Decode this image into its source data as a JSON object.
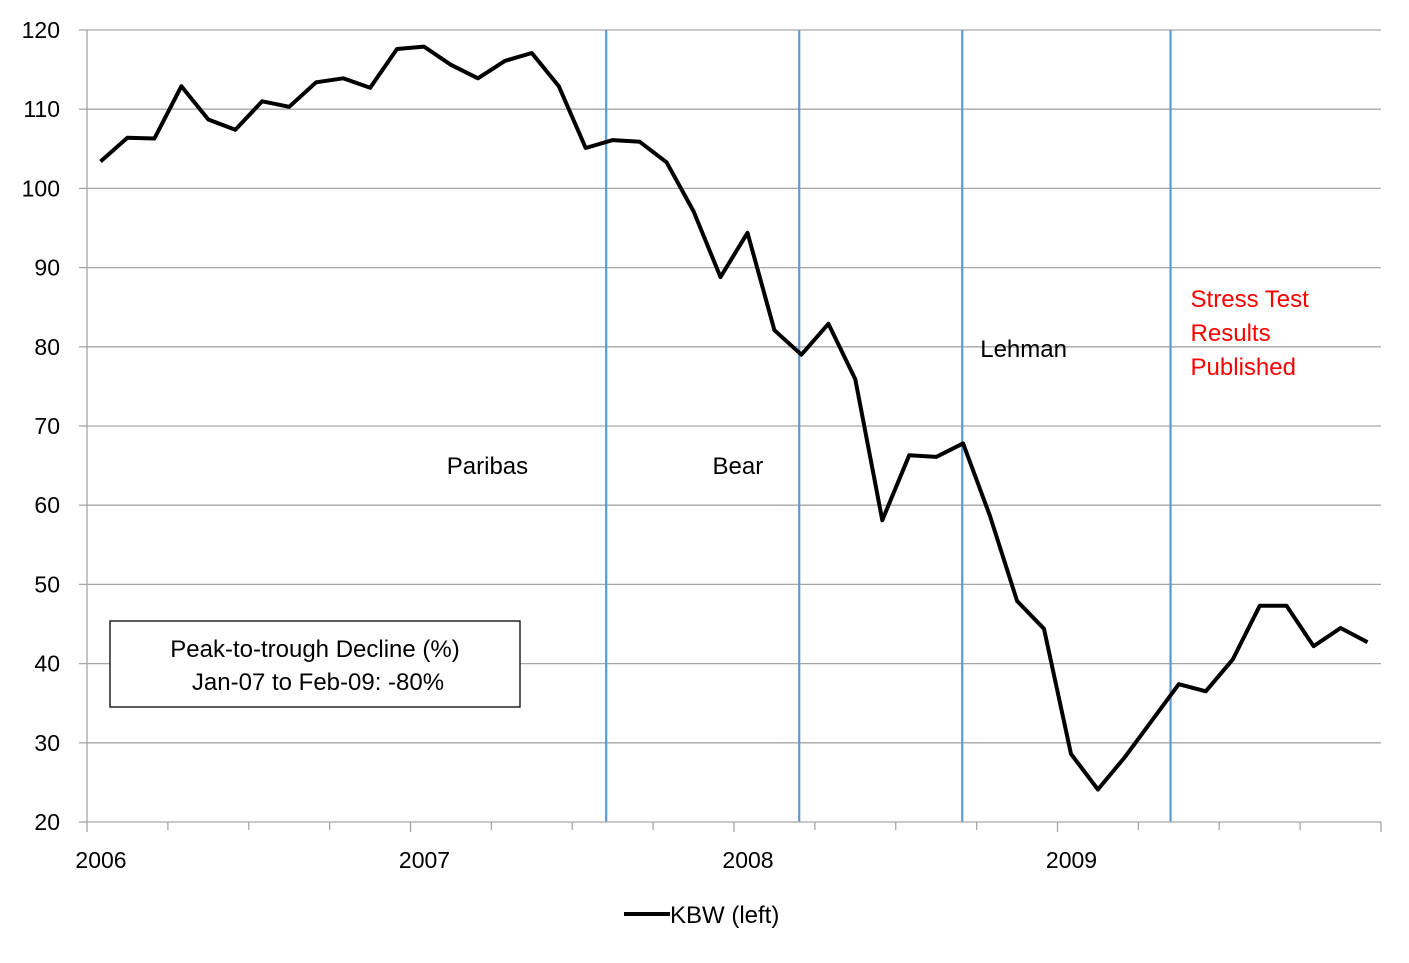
{
  "colors": {
    "series": "#000000",
    "event_line": "#5b9bd5",
    "gridline": "#a6a6a6",
    "stress_text": "#ff0000"
  },
  "chart_data": {
    "type": "line",
    "title": "",
    "xlabel": "",
    "ylabel": "",
    "ylim": [
      20,
      120
    ],
    "yticks": [
      "20",
      "30",
      "40",
      "50",
      "60",
      "70",
      "80",
      "90",
      "100",
      "110",
      "120"
    ],
    "xlim": [
      "2006-01",
      "2009-12"
    ],
    "xticks": [
      "2006",
      "2007",
      "2008",
      "2009"
    ],
    "grid": "horizontal",
    "legend": "bottom-center",
    "series": [
      {
        "name": "KBW (left)",
        "x": [
          "2006-01",
          "2006-02",
          "2006-03",
          "2006-04",
          "2006-05",
          "2006-06",
          "2006-07",
          "2006-08",
          "2006-09",
          "2006-10",
          "2006-11",
          "2006-12",
          "2007-01",
          "2007-02",
          "2007-03",
          "2007-04",
          "2007-05",
          "2007-06",
          "2007-07",
          "2007-08",
          "2007-09",
          "2007-10",
          "2007-11",
          "2007-12",
          "2008-01",
          "2008-02",
          "2008-03",
          "2008-04",
          "2008-05",
          "2008-06",
          "2008-07",
          "2008-08",
          "2008-09",
          "2008-10",
          "2008-11",
          "2008-12",
          "2009-01",
          "2009-02",
          "2009-03",
          "2009-04",
          "2009-05",
          "2009-06",
          "2009-07",
          "2009-08",
          "2009-09",
          "2009-10",
          "2009-11",
          "2009-12"
        ],
        "values": [
          103.4,
          106.4,
          106.3,
          112.9,
          108.7,
          107.4,
          111.0,
          110.3,
          113.4,
          113.9,
          112.7,
          117.6,
          117.9,
          115.6,
          113.9,
          116.1,
          117.1,
          112.9,
          105.1,
          106.1,
          105.9,
          103.3,
          97.1,
          88.8,
          94.4,
          82.1,
          79.0,
          82.9,
          75.9,
          58.1,
          66.3,
          66.1,
          67.8,
          58.6,
          47.9,
          44.4,
          28.6,
          24.1,
          28.2,
          32.8,
          37.4,
          36.5,
          40.5,
          47.3,
          47.3,
          42.2,
          44.5,
          42.7
        ]
      }
    ],
    "events": [
      {
        "label": "Paribas",
        "date": "2007-08-09"
      },
      {
        "label": "Bear",
        "date": "2008-03-14"
      },
      {
        "label": "Lehman",
        "date": "2008-09-15"
      },
      {
        "label_lines": [
          "Stress Test",
          "Results",
          "Published"
        ],
        "date": "2009-05-07"
      }
    ],
    "annotation": {
      "lines": [
        "Peak-to-trough Decline (%)",
        "Jan-07 to Feb-09: -80%"
      ]
    }
  }
}
